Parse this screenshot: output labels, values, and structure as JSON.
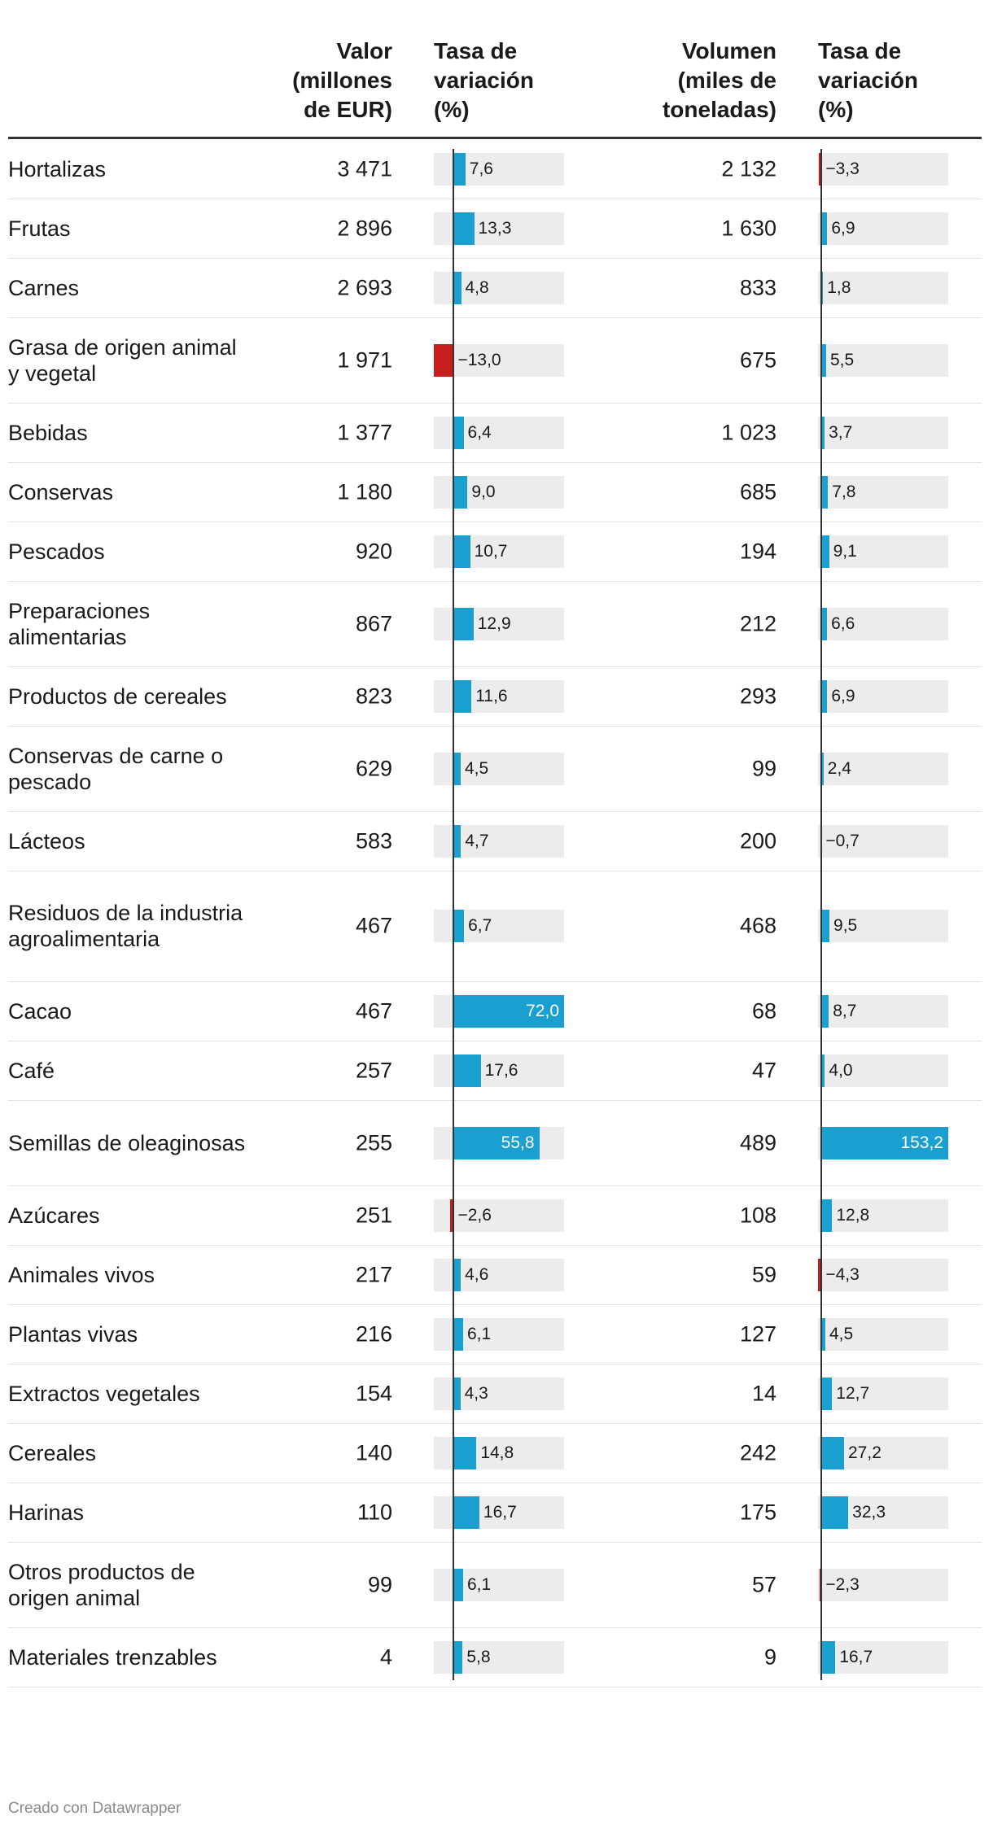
{
  "chart_data": {
    "type": "table",
    "columns": {
      "category": "",
      "value": "Valor\n(millones\nde EUR)",
      "value_change": "Tasa de\nvariación\n(%)",
      "volume": "Volumen\n(miles de\ntoneladas)",
      "volume_change": "Tasa de\nvariación\n(%)"
    },
    "rows": [
      {
        "name": "Hortalizas",
        "value": "3 471",
        "value_change": 7.6,
        "volume": "2 132",
        "volume_change": -3.3
      },
      {
        "name": "Frutas",
        "value": "2 896",
        "value_change": 13.3,
        "volume": "1 630",
        "volume_change": 6.9
      },
      {
        "name": "Carnes",
        "value": "2 693",
        "value_change": 4.8,
        "volume": "833",
        "volume_change": 1.8
      },
      {
        "name": "Grasa de origen animal y vegetal",
        "value": "1 971",
        "value_change": -13.0,
        "volume": "675",
        "volume_change": 5.5
      },
      {
        "name": "Bebidas",
        "value": "1 377",
        "value_change": 6.4,
        "volume": "1 023",
        "volume_change": 3.7
      },
      {
        "name": "Conservas",
        "value": "1 180",
        "value_change": 9.0,
        "volume": "685",
        "volume_change": 7.8
      },
      {
        "name": "Pescados",
        "value": "920",
        "value_change": 10.7,
        "volume": "194",
        "volume_change": 9.1
      },
      {
        "name": "Preparaciones alimentarias",
        "value": "867",
        "value_change": 12.9,
        "volume": "212",
        "volume_change": 6.6
      },
      {
        "name": "Productos de cereales",
        "value": "823",
        "value_change": 11.6,
        "volume": "293",
        "volume_change": 6.9
      },
      {
        "name": "Conservas de carne o pescado",
        "value": "629",
        "value_change": 4.5,
        "volume": "99",
        "volume_change": 2.4
      },
      {
        "name": "Lácteos",
        "value": "583",
        "value_change": 4.7,
        "volume": "200",
        "volume_change": -0.7
      },
      {
        "name": "Residuos de la industria agroalimentaria",
        "value": "467",
        "value_change": 6.7,
        "volume": "468",
        "volume_change": 9.5
      },
      {
        "name": "Cacao",
        "value": "467",
        "value_change": 72.0,
        "volume": "68",
        "volume_change": 8.7
      },
      {
        "name": "Café",
        "value": "257",
        "value_change": 17.6,
        "volume": "47",
        "volume_change": 4.0
      },
      {
        "name": "Semillas de oleaginosas",
        "value": "255",
        "value_change": 55.8,
        "volume": "489",
        "volume_change": 153.2
      },
      {
        "name": "Azúcares",
        "value": "251",
        "value_change": -2.6,
        "volume": "108",
        "volume_change": 12.8
      },
      {
        "name": "Animales vivos",
        "value": "217",
        "value_change": 4.6,
        "volume": "59",
        "volume_change": -4.3
      },
      {
        "name": "Plantas vivas",
        "value": "216",
        "value_change": 6.1,
        "volume": "127",
        "volume_change": 4.5
      },
      {
        "name": "Extractos vegetales",
        "value": "154",
        "value_change": 4.3,
        "volume": "14",
        "volume_change": 12.7
      },
      {
        "name": "Cereales",
        "value": "140",
        "value_change": 14.8,
        "volume": "242",
        "volume_change": 27.2
      },
      {
        "name": "Harinas",
        "value": "110",
        "value_change": 16.7,
        "volume": "175",
        "volume_change": 32.3
      },
      {
        "name": "Otros productos de origen animal",
        "value": "99",
        "value_change": 6.1,
        "volume": "57",
        "volume_change": -2.3
      },
      {
        "name": "Materiales trenzables",
        "value": "4",
        "value_change": 5.8,
        "volume": "9",
        "volume_change": 16.7
      }
    ],
    "value_change_range": [
      -13.0,
      72.0
    ],
    "volume_change_range": [
      -4.3,
      153.2
    ]
  },
  "colors": {
    "positive": "#1aa0d0",
    "negative": "#c71e1d",
    "track": "#ececec"
  },
  "footer": "Creado con Datawrapper"
}
